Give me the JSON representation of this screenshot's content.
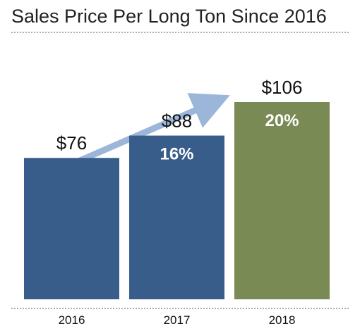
{
  "chart_data": {
    "type": "bar",
    "title": "Sales Price Per Long Ton Since 2016",
    "xlabel": "",
    "ylabel": "",
    "categories": [
      "2016",
      "2017",
      "2018"
    ],
    "values": [
      76,
      88,
      106
    ],
    "value_labels": [
      "$76",
      "$88",
      "$106"
    ],
    "growth_labels": [
      "",
      "16%",
      "20%"
    ],
    "bar_colors": [
      "#385D8A",
      "#385D8A",
      "#7A8A55"
    ],
    "arrow_color": "#9BB6D8",
    "ylim": [
      0,
      106
    ],
    "grid": false,
    "legend": "none"
  }
}
